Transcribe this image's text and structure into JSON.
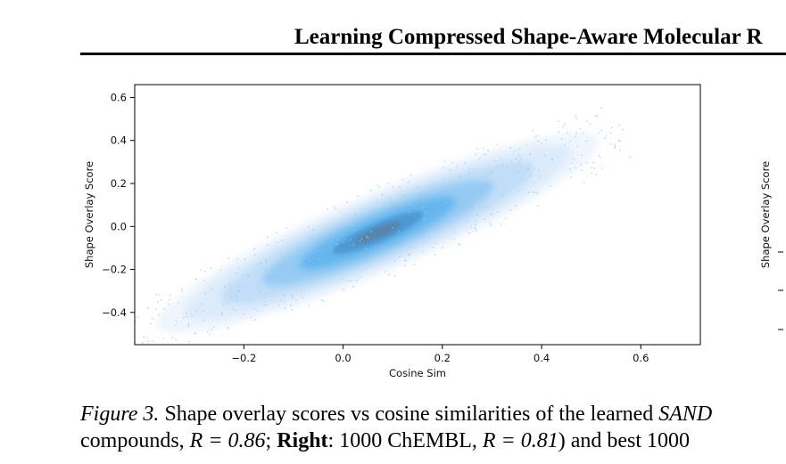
{
  "header": {
    "title": "Learning Compressed Shape-Aware Molecular R"
  },
  "chart_data": [
    {
      "type": "heatmap",
      "title": "",
      "xlabel": "Cosine Sim",
      "ylabel": "Shape Overlay Score",
      "xlim": [
        -0.42,
        0.72
      ],
      "ylim": [
        -0.55,
        0.66
      ],
      "xticks": [
        "−0.2",
        "0.0",
        "0.2",
        "0.4",
        "0.6"
      ],
      "xtick_values": [
        -0.2,
        0.0,
        0.2,
        0.4,
        0.6
      ],
      "yticks": [
        "0.6",
        "0.4",
        "0.2",
        "0.0",
        "−0.2",
        "−0.4"
      ],
      "ytick_values": [
        0.6,
        0.4,
        0.2,
        0.0,
        -0.2,
        -0.4
      ],
      "density": {
        "center": [
          0.07,
          -0.03
        ],
        "slope": 0.98,
        "correlation": 0.86
      },
      "colors": {
        "low": "#cfe3f9",
        "mid": "#5bb3ee",
        "high": "#5a7fa0"
      }
    },
    {
      "type": "heatmap",
      "ylabel": "Shape Overlay Score",
      "visible": "partially cropped at right edge"
    }
  ],
  "caption": {
    "label": "Figure 3.",
    "line1_text": " Shape overlay scores vs cosine similarities of the learned ",
    "line1_italic": "SAND",
    "line2_a": "compounds, ",
    "math1": "R = 0.86",
    "line2_b": "; ",
    "right_bold": "Right",
    "line2_c": ": 1000 ChEMBL, ",
    "math2": "R = 0.81",
    "line2_d": ") and best 1000"
  }
}
